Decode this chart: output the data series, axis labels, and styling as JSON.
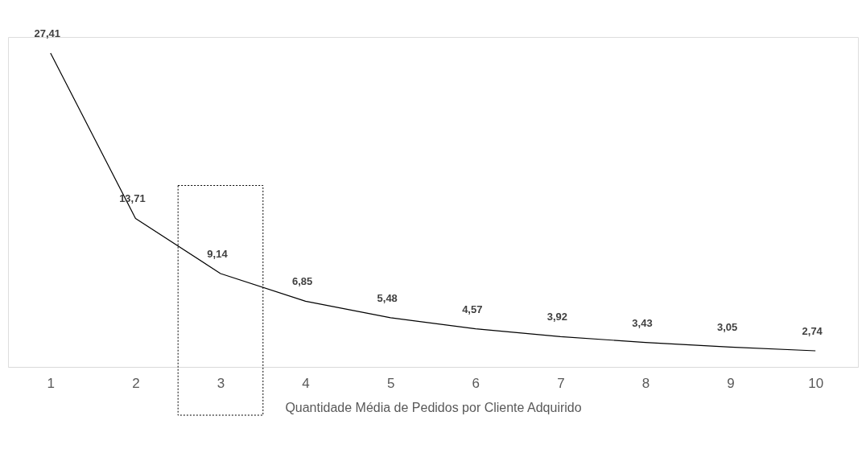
{
  "chart_data": {
    "type": "line",
    "xlabel": "Quantidade Média de Pedidos por Cliente Adquirido",
    "categories": [
      "1",
      "2",
      "3",
      "4",
      "5",
      "6",
      "7",
      "8",
      "9",
      "10"
    ],
    "values": [
      27.41,
      13.71,
      9.14,
      6.85,
      5.48,
      4.57,
      3.92,
      3.43,
      3.05,
      2.74
    ],
    "value_labels": [
      "27,41",
      "13,71",
      "9,14",
      "6,85",
      "5,48",
      "4,57",
      "3,92",
      "3,43",
      "3,05",
      "2,74"
    ],
    "color": "#000000",
    "grid": false,
    "marker": "none"
  }
}
